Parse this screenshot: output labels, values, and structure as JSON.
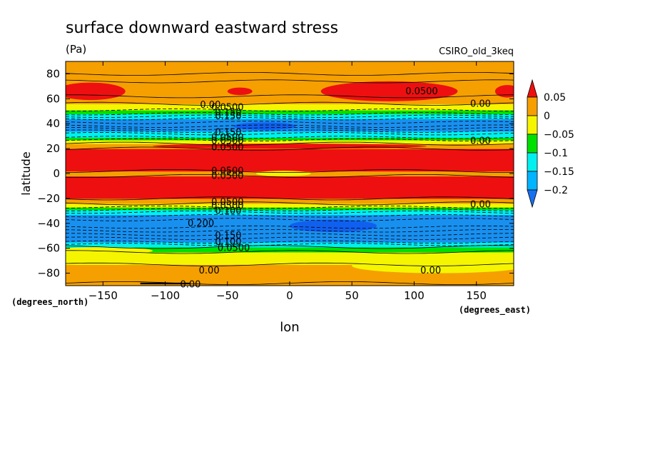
{
  "chart_data": {
    "type": "heatmap",
    "title": "surface downward eastward stress",
    "units": "(Pa)",
    "model_label": "CSIRO_old_3keq",
    "xlabel": "lon",
    "ylabel": "latitude",
    "x_units": "(degrees_east)",
    "y_units": "(degrees_north)",
    "xlim": [
      -180,
      180
    ],
    "ylim": [
      -90,
      90
    ],
    "x_ticks": [
      -150,
      -100,
      -50,
      0,
      50,
      100,
      150
    ],
    "y_ticks": [
      -80,
      -60,
      -40,
      -20,
      0,
      20,
      40,
      60,
      80
    ],
    "x_tick_labels": [
      "−150",
      "−100",
      "−50",
      "0",
      "50",
      "100",
      "150"
    ],
    "y_tick_labels": [
      "−80",
      "−60",
      "−40",
      "−20",
      "0",
      "20",
      "40",
      "60",
      "80"
    ],
    "colorbar": {
      "levels": [
        -0.2,
        -0.15,
        -0.1,
        -0.05,
        0,
        0.05
      ],
      "labels": [
        "0.05",
        "0",
        "−0.05",
        "−0.1",
        "−0.15",
        "−0.2"
      ],
      "colors": [
        "#e8e800",
        "#f5a000",
        "#f5f500",
        "#00e000",
        "#00f0f0",
        "#00a0ff",
        "#1060f0"
      ],
      "bins": [
        {
          "range": "> 0.05",
          "color": "#ee1010"
        },
        {
          "range": "0 to 0.05",
          "color": "#f5a000"
        },
        {
          "range": "-0.05 to 0",
          "color": "#f5f500"
        },
        {
          "range": "-0.1 to -0.05",
          "color": "#00e000"
        },
        {
          "range": "-0.15 to -0.1",
          "color": "#00f0f0"
        },
        {
          "range": "-0.2 to -0.15",
          "color": "#00b4ff"
        },
        {
          "range": "< -0.2",
          "color": "#1870f0"
        }
      ]
    },
    "bands": [
      {
        "lat": [
          -90,
          -88
        ],
        "level": "orange"
      },
      {
        "lat": [
          -88,
          -73
        ],
        "level": "orange"
      },
      {
        "lat": [
          -73,
          -63
        ],
        "level": "yellow"
      },
      {
        "lat": [
          -63,
          -59
        ],
        "level": "green"
      },
      {
        "lat": [
          -59,
          -55
        ],
        "level": "cyan"
      },
      {
        "lat": [
          -55,
          -33
        ],
        "level": "blue"
      },
      {
        "lat": [
          -33,
          -29
        ],
        "level": "cyan"
      },
      {
        "lat": [
          -29,
          -27
        ],
        "level": "green"
      },
      {
        "lat": [
          -27,
          -24
        ],
        "level": "yellow"
      },
      {
        "lat": [
          -24,
          -20
        ],
        "level": "orange"
      },
      {
        "lat": [
          -20,
          -2
        ],
        "level": "red"
      },
      {
        "lat": [
          -2,
          2
        ],
        "level": "orange"
      },
      {
        "lat": [
          2,
          20
        ],
        "level": "red"
      },
      {
        "lat": [
          20,
          24
        ],
        "level": "orange"
      },
      {
        "lat": [
          24,
          27
        ],
        "level": "yellow"
      },
      {
        "lat": [
          27,
          29
        ],
        "level": "green"
      },
      {
        "lat": [
          29,
          34
        ],
        "level": "cyan"
      },
      {
        "lat": [
          34,
          44
        ],
        "level": "blue"
      },
      {
        "lat": [
          44,
          48
        ],
        "level": "cyan"
      },
      {
        "lat": [
          48,
          51
        ],
        "level": "green"
      },
      {
        "lat": [
          51,
          56
        ],
        "level": "yellow"
      },
      {
        "lat": [
          56,
          90
        ],
        "level": "orange"
      }
    ],
    "contour_labels": [
      {
        "text": "0.00",
        "lon": -72,
        "lat": 55
      },
      {
        "text": "0.0500",
        "lon": -63,
        "lat": 53
      },
      {
        "text": "0.150",
        "lon": -60,
        "lat": 49
      },
      {
        "text": "0.150",
        "lon": -60,
        "lat": 46
      },
      {
        "text": "0.150",
        "lon": -60,
        "lat": 33
      },
      {
        "text": "0.0500",
        "lon": -63,
        "lat": 29
      },
      {
        "text": "0.0500",
        "lon": -63,
        "lat": 26
      },
      {
        "text": "0.0500",
        "lon": -63,
        "lat": 21
      },
      {
        "text": "0.0500",
        "lon": -63,
        "lat": 2
      },
      {
        "text": "0.0500",
        "lon": -63,
        "lat": -2
      },
      {
        "text": "0.0500",
        "lon": -63,
        "lat": -23
      },
      {
        "text": "0.0500",
        "lon": -63,
        "lat": -26
      },
      {
        "text": "0.100",
        "lon": -60,
        "lat": -30
      },
      {
        "text": "0.200",
        "lon": -82,
        "lat": -40
      },
      {
        "text": "0.150",
        "lon": -60,
        "lat": -50
      },
      {
        "text": "0.100",
        "lon": -60,
        "lat": -55
      },
      {
        "text": "0.0500",
        "lon": -58,
        "lat": -60
      },
      {
        "text": "0.00",
        "lon": -73,
        "lat": -78
      },
      {
        "text": "0.00",
        "lon": 105,
        "lat": -78
      },
      {
        "text": "0.00",
        "lon": -88,
        "lat": -89
      },
      {
        "text": "0.0500",
        "lon": 93,
        "lat": 66
      },
      {
        "text": "0.00",
        "lon": 145,
        "lat": 56
      },
      {
        "text": "0.00",
        "lon": 145,
        "lat": 26
      },
      {
        "text": "0.00",
        "lon": 145,
        "lat": -25
      }
    ]
  }
}
